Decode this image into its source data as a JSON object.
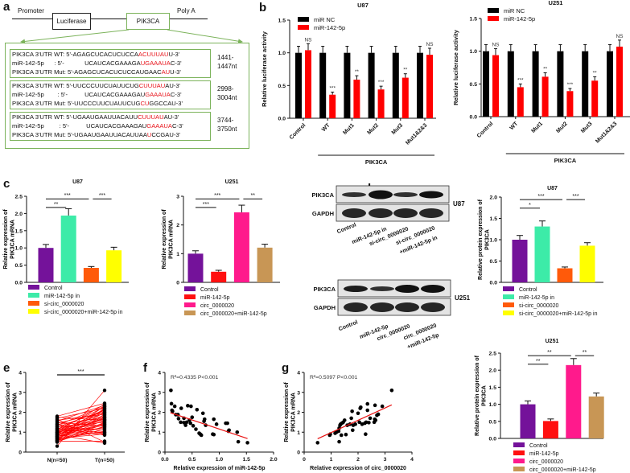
{
  "panels": {
    "a": "a",
    "b": "b",
    "c": "c",
    "d": "d",
    "e": "e",
    "f": "f",
    "g": "g"
  },
  "construct": {
    "promoter": "Promoter",
    "luciferase": "Luciferase",
    "gene": "PIK3CA",
    "polya": "Poly A"
  },
  "sites": [
    {
      "rows": [
        {
          "pre": "PIK3CA 3'UTR WT: 5'-AGAGCUCACUCUCCA",
          "red": "ACUUUAU",
          "post": "U-3'"
        },
        {
          "pre": "miR-142-5p      : 5'-            UCAUCACGAAAGA",
          "red": "UGAAAUA",
          "post": "C-3'"
        },
        {
          "pre": "PIK3CA 3'UTR Mut: 5'-AGAGCUCACUCUCCAUGAAC",
          "red": "AU",
          "post": "U-3'"
        }
      ],
      "pos1": "1441-",
      "pos2": "1447nt"
    },
    {
      "rows": [
        {
          "pre": "PIK3CA 3'UTR WT: 5'-UUCCCUUCUAUUCUG",
          "red": "CUUUAU",
          "post": "AU-3'"
        },
        {
          "pre": "miR-142-5p        : 5'-          UCAUCACGAAAGAU",
          "red": "GAAAUA",
          "post": "C-3'"
        },
        {
          "pre": "PIK3CA 3'UTR Mut: 5'-UUCCCUUCUAUUCUG",
          "red": "CU",
          "post": "GGCCAU-3'"
        }
      ],
      "pos1": "2998-",
      "pos2": "3004nt"
    },
    {
      "rows": [
        {
          "pre": "PIK3CA 3'UTR WT: 5'-UGAAUGAAUUACAUU",
          "red": "CUUUAU",
          "post": "AU-3'"
        },
        {
          "pre": "miR-142-5p         : 5'-          UCAUCACGAAAGAU",
          "red": "GAAAUA",
          "post": "C-3'"
        },
        {
          "pre": "PIK3CA 3'UTR Mut: 5'-UGAAUGAAUUACAUUAA",
          "red": "U",
          "post": "CCGAU-3'"
        }
      ],
      "pos1": "3744-",
      "pos2": "3750nt"
    }
  ],
  "blots": {
    "u87": {
      "cell": "U87",
      "rows": [
        "PIK3CA",
        "GAPDH"
      ],
      "lanes": [
        "Control",
        "miR-142-5p in",
        "si-circ_0000020",
        "si-circ_0000020",
        "+miR-142-5p in"
      ]
    },
    "u251": {
      "cell": "U251",
      "rows": [
        "PIK3CA",
        "GAPDH"
      ],
      "lanes": [
        "Control",
        "miR-142-5p",
        "circ_0000020",
        "circ_0000020",
        "+miR-142-5p"
      ]
    }
  },
  "chart_data": {
    "b_u87": {
      "type": "bar",
      "title": "U87",
      "ylabel": "Relative luciferase activity",
      "ylim": [
        0,
        1.5
      ],
      "yticks": [
        "0.0",
        "0.5",
        "1.0",
        "1.5"
      ],
      "categories": [
        "Control",
        "WT",
        "Mut1",
        "Mut2",
        "Mut3",
        "Mut1&2&3"
      ],
      "group_label": "PIK3CA",
      "series": [
        {
          "name": "miR NC",
          "color": "#000000",
          "values": [
            1,
            1,
            1,
            1,
            1,
            1
          ],
          "errors": [
            0.1,
            0.1,
            0.1,
            0.1,
            0.1,
            0.1
          ]
        },
        {
          "name": "miR-142-5p",
          "color": "#ff0000",
          "values": [
            1.04,
            0.36,
            0.59,
            0.44,
            0.62,
            0.97
          ],
          "errors": [
            0.1,
            0.04,
            0.06,
            0.05,
            0.06,
            0.1
          ]
        }
      ],
      "annotations": [
        "NS",
        "***",
        "**",
        "***",
        "**",
        "NS"
      ]
    },
    "b_u251": {
      "type": "bar",
      "title": "U251",
      "ylabel": "Relative luciferase activity",
      "ylim": [
        0,
        1.5
      ],
      "yticks": [
        "0.0",
        "0.5",
        "1.0",
        "1.5"
      ],
      "categories": [
        "Control",
        "WT",
        "Mut1",
        "Mut2",
        "Mut3",
        "Mut1&2&3"
      ],
      "group_label": "PIK3CA",
      "series": [
        {
          "name": "miR NC",
          "color": "#000000",
          "values": [
            1,
            1,
            1,
            1,
            1,
            1
          ],
          "errors": [
            0.1,
            0.1,
            0.1,
            0.1,
            0.1,
            0.1
          ]
        },
        {
          "name": "miR-142-5p",
          "color": "#ff0000",
          "values": [
            0.94,
            0.45,
            0.61,
            0.39,
            0.55,
            1.07
          ],
          "errors": [
            0.1,
            0.05,
            0.06,
            0.04,
            0.06,
            0.1
          ]
        }
      ],
      "annotations": [
        "NS",
        "***",
        "**",
        "***",
        "**",
        "NS"
      ]
    },
    "c_u87": {
      "type": "bar",
      "title": "U87",
      "ylabel": "Relative expression of PIK3CA mRNA",
      "ylim": [
        0,
        2.5
      ],
      "yticks": [
        "0.0",
        "0.5",
        "1.0",
        "1.5",
        "2.0",
        "2.5"
      ],
      "categories": [
        "Control",
        "miR-142-5p in",
        "si-circ_0000020",
        "si-circ_0000020+miR-142-5p in"
      ],
      "colors": [
        "#74129a",
        "#3deba8",
        "#ff5a0a",
        "#ffff00"
      ],
      "values": [
        1.0,
        1.94,
        0.42,
        0.93
      ],
      "errors": [
        0.1,
        0.2,
        0.04,
        0.09
      ],
      "brackets": [
        {
          "from": 0,
          "to": 1,
          "label": "**",
          "tier": 0
        },
        {
          "from": 0,
          "to": 2,
          "label": "***",
          "tier": 1
        },
        {
          "from": 2,
          "to": 3,
          "label": "***",
          "tier": 1
        }
      ]
    },
    "c_u251": {
      "type": "bar",
      "title": "U251",
      "ylabel": "Relative expression of PIK3CA mRNA",
      "ylim": [
        0,
        3
      ],
      "yticks": [
        "0",
        "1",
        "2",
        "3"
      ],
      "categories": [
        "Control",
        "miR-142-5p",
        "circ_0000020",
        "circ_0000020+miR-142-5p"
      ],
      "colors": [
        "#74129a",
        "#ff1010",
        "#ff1a8c",
        "#c89655"
      ],
      "values": [
        1.0,
        0.37,
        2.44,
        1.21
      ],
      "errors": [
        0.1,
        0.05,
        0.25,
        0.12
      ],
      "brackets": [
        {
          "from": 0,
          "to": 1,
          "label": "***",
          "tier": 0
        },
        {
          "from": 0,
          "to": 2,
          "label": "***",
          "tier": 1
        },
        {
          "from": 2,
          "to": 3,
          "label": "**",
          "tier": 1
        }
      ]
    },
    "d_u87": {
      "type": "bar",
      "title": "U87",
      "ylabel": "Relative protein expression of PIK3CA",
      "ylim": [
        0,
        2
      ],
      "yticks": [
        "0.0",
        "0.5",
        "1.0",
        "1.5",
        "2.0"
      ],
      "categories": [
        "Control",
        "miR-142-5p in",
        "si-circ_0000020",
        "si-circ_0000020+miR-142-5p in"
      ],
      "colors": [
        "#74129a",
        "#3deba8",
        "#ff5a0a",
        "#ffff00"
      ],
      "values": [
        1.0,
        1.31,
        0.33,
        0.86
      ],
      "errors": [
        0.1,
        0.13,
        0.03,
        0.07
      ],
      "brackets": [
        {
          "from": 0,
          "to": 1,
          "label": "*",
          "tier": 0
        },
        {
          "from": 0,
          "to": 2,
          "label": "***",
          "tier": 1
        },
        {
          "from": 2,
          "to": 3,
          "label": "***",
          "tier": 1
        }
      ]
    },
    "d_u251": {
      "type": "bar",
      "title": "U251",
      "ylabel": "Relative protein expression of PIK3CA",
      "ylim": [
        0,
        2.5
      ],
      "yticks": [
        "0.0",
        "0.5",
        "1.0",
        "1.5",
        "2.0",
        "2.5"
      ],
      "categories": [
        "Control",
        "miR-142-5p",
        "circ_0000020",
        "circ_0000020+miR-142-5p"
      ],
      "colors": [
        "#74129a",
        "#ff1010",
        "#ff1a8c",
        "#c89655"
      ],
      "values": [
        1.0,
        0.51,
        2.15,
        1.23
      ],
      "errors": [
        0.1,
        0.06,
        0.19,
        0.1
      ],
      "brackets": [
        {
          "from": 0,
          "to": 1,
          "label": "**",
          "tier": 0
        },
        {
          "from": 0,
          "to": 2,
          "label": "**",
          "tier": 1
        },
        {
          "from": 2,
          "to": 3,
          "label": "**",
          "tier": 1
        }
      ]
    },
    "e": {
      "type": "line",
      "ylabel": "Relative expression of PIK3CA mRNA",
      "ylim": [
        0,
        4
      ],
      "yticks": [
        "0",
        "1",
        "2",
        "3",
        "4"
      ],
      "categories": [
        "N(n=50)",
        "T(n=50)"
      ],
      "significance": "***",
      "N": [
        1.8,
        1.75,
        1.7,
        1.65,
        1.6,
        1.55,
        1.5,
        1.45,
        1.4,
        1.38,
        1.35,
        1.3,
        1.28,
        1.25,
        1.2,
        1.18,
        1.15,
        1.12,
        1.1,
        1.08,
        1.05,
        1.02,
        1.0,
        0.98,
        0.95,
        0.93,
        0.9,
        0.88,
        0.85,
        0.83,
        0.8,
        0.78,
        0.75,
        0.73,
        0.7,
        0.68,
        0.65,
        0.63,
        0.6,
        0.58,
        0.55,
        0.55,
        0.52,
        0.5,
        0.6,
        0.7,
        0.8,
        0.9,
        1.0,
        0.3
      ],
      "T": [
        2.45,
        1.6,
        2.2,
        0.5,
        1.9,
        2.35,
        1.3,
        2.0,
        0.9,
        1.75,
        2.3,
        1.1,
        1.5,
        2.1,
        0.85,
        1.65,
        2.25,
        1.4,
        1.0,
        1.95,
        2.4,
        1.2,
        1.55,
        0.95,
        1.85,
        2.15,
        1.35,
        0.45,
        1.7,
        2.05,
        1.25,
        1.45,
        1.8,
        2.3,
        0.9,
        1.6,
        1.05,
        2.0,
        1.4,
        1.15,
        1.9,
        0.55,
        1.3,
        1.5,
        2.2,
        1.75,
        1.0,
        1.65,
        2.1,
        3.1
      ]
    },
    "f": {
      "type": "scatter",
      "annotation": "R²=0.4335 P<0.001",
      "ylabel": "Relative expression of PIK3CA mRNA",
      "xlabel": "Relative expression of miR-142-5p",
      "xlim": [
        0,
        2
      ],
      "xticks": [
        "0.0",
        "0.5",
        "1.0",
        "1.5",
        "2.0"
      ],
      "ylim": [
        0,
        4
      ],
      "yticks": [
        "0",
        "1",
        "2",
        "3",
        "4"
      ],
      "points": [
        [
          0.11,
          3.1
        ],
        [
          0.12,
          2.43
        ],
        [
          0.13,
          2.1
        ],
        [
          0.14,
          2.05
        ],
        [
          0.18,
          2.3
        ],
        [
          0.2,
          1.88
        ],
        [
          0.24,
          1.88
        ],
        [
          0.25,
          1.68
        ],
        [
          0.29,
          1.5
        ],
        [
          0.3,
          2.2
        ],
        [
          0.35,
          1.48
        ],
        [
          0.35,
          1.7
        ],
        [
          0.38,
          1.35
        ],
        [
          0.4,
          1.5
        ],
        [
          0.42,
          2.33
        ],
        [
          0.45,
          1.6
        ],
        [
          0.47,
          1.45
        ],
        [
          0.48,
          2.3
        ],
        [
          0.5,
          1.75
        ],
        [
          0.52,
          1.32
        ],
        [
          0.57,
          1.15
        ],
        [
          0.59,
          2.13
        ],
        [
          0.63,
          0.95
        ],
        [
          0.65,
          0.9
        ],
        [
          0.67,
          0.85
        ],
        [
          0.7,
          1.95
        ],
        [
          0.72,
          1.55
        ],
        [
          0.73,
          1.65
        ],
        [
          0.75,
          1.35
        ],
        [
          0.88,
          0.9
        ],
        [
          0.9,
          0.88
        ],
        [
          0.9,
          1.65
        ],
        [
          0.95,
          1.4
        ],
        [
          1.12,
          1.45
        ],
        [
          1.15,
          1.45
        ],
        [
          1.17,
          1.05
        ],
        [
          1.18,
          1.1
        ],
        [
          1.33,
          1.0
        ],
        [
          1.35,
          0.52
        ],
        [
          1.52,
          0.47
        ]
      ],
      "fit": [
        [
          0.1,
          1.98
        ],
        [
          1.52,
          0.68
        ]
      ]
    },
    "g": {
      "type": "scatter",
      "annotation": "R²=0.5097 P<0.001",
      "ylabel": "Relative expression of PIK3CA mRNA",
      "xlabel": "Relative expression of circ_0000020",
      "xlim": [
        0,
        4
      ],
      "xticks": [
        "0",
        "1",
        "2",
        "3",
        "4"
      ],
      "ylim": [
        0,
        4
      ],
      "yticks": [
        "0",
        "1",
        "2",
        "3",
        "4"
      ],
      "points": [
        [
          0.5,
          0.47
        ],
        [
          0.95,
          0.85
        ],
        [
          0.97,
          0.9
        ],
        [
          1.15,
          0.95
        ],
        [
          1.2,
          1.0
        ],
        [
          1.28,
          1.05
        ],
        [
          1.3,
          0.52
        ],
        [
          1.3,
          1.2
        ],
        [
          1.33,
          1.35
        ],
        [
          1.35,
          1.4
        ],
        [
          1.38,
          0.85
        ],
        [
          1.4,
          1.45
        ],
        [
          1.45,
          1.5
        ],
        [
          1.5,
          1.6
        ],
        [
          1.55,
          0.88
        ],
        [
          1.6,
          1.35
        ],
        [
          1.7,
          1.4
        ],
        [
          1.75,
          1.7
        ],
        [
          1.78,
          2.05
        ],
        [
          1.8,
          1.1
        ],
        [
          1.82,
          1.35
        ],
        [
          1.9,
          1.4
        ],
        [
          2.0,
          1.95
        ],
        [
          2.05,
          1.5
        ],
        [
          2.08,
          2.2
        ],
        [
          2.1,
          2.25
        ],
        [
          2.15,
          1.4
        ],
        [
          2.25,
          1.45
        ],
        [
          2.28,
          0.9
        ],
        [
          2.3,
          1.5
        ],
        [
          2.35,
          2.1
        ],
        [
          2.35,
          2.42
        ],
        [
          2.4,
          1.48
        ],
        [
          2.45,
          1.7
        ],
        [
          2.6,
          1.5
        ],
        [
          2.62,
          1.65
        ],
        [
          2.63,
          2.35
        ],
        [
          2.65,
          1.6
        ],
        [
          2.7,
          1.85
        ],
        [
          2.75,
          1.9
        ],
        [
          2.9,
          2.3
        ],
        [
          3.25,
          3.1
        ]
      ],
      "fit": [
        [
          0.5,
          0.67
        ],
        [
          3.25,
          2.37
        ]
      ]
    }
  }
}
